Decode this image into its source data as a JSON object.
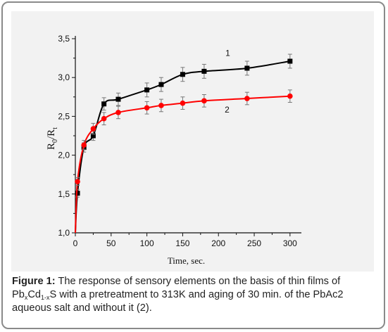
{
  "chart_data": {
    "type": "line",
    "xlabel": "Time, sec.",
    "ylabel": "R0/Rt",
    "xlim": [
      0,
      310
    ],
    "ylim": [
      1.0,
      3.5
    ],
    "xticks": [
      0,
      50,
      100,
      150,
      200,
      250,
      300
    ],
    "xtick_labels": [
      "0",
      "50",
      "100",
      "150",
      "200",
      "250",
      "300"
    ],
    "yticks": [
      1.0,
      1.5,
      2.0,
      2.5,
      3.0,
      3.5
    ],
    "ytick_labels": [
      "1,0",
      "1,5",
      "2,0",
      "2,5",
      "3,0",
      "3,5"
    ],
    "grid": false,
    "series": [
      {
        "name": "1",
        "color": "#000000",
        "marker": "square",
        "x": [
          0,
          3,
          12,
          25,
          40,
          60,
          100,
          120,
          150,
          180,
          240,
          300
        ],
        "y": [
          1.0,
          1.51,
          2.1,
          2.25,
          2.66,
          2.72,
          2.84,
          2.91,
          3.04,
          3.08,
          3.12,
          3.21
        ],
        "err": [
          0,
          0.05,
          0.06,
          0.06,
          0.08,
          0.08,
          0.09,
          0.09,
          0.09,
          0.09,
          0.09,
          0.09
        ]
      },
      {
        "name": "2",
        "color": "#ff0000",
        "marker": "circle",
        "x": [
          0,
          3,
          12,
          25,
          40,
          60,
          100,
          120,
          150,
          180,
          240,
          300
        ],
        "y": [
          1.0,
          1.66,
          2.13,
          2.34,
          2.47,
          2.55,
          2.61,
          2.64,
          2.67,
          2.7,
          2.73,
          2.76
        ],
        "err": [
          0,
          0.05,
          0.06,
          0.07,
          0.08,
          0.08,
          0.08,
          0.08,
          0.08,
          0.08,
          0.08,
          0.08
        ]
      }
    ]
  },
  "labels": {
    "y_main": "R",
    "y_sub0": "0",
    "y_slash": "/R",
    "y_subt": "t"
  },
  "caption": {
    "lead": "Figure 1:",
    "part1": " The response of sensory elements on the basis of thin films of Pb",
    "sub_x": "x",
    "part2": "Cd",
    "sub_1x": "1-x",
    "part3": "S with a pretreatment to 313K and aging of 30 min. of the PbAc2 aqueous salt and without it (2)."
  }
}
